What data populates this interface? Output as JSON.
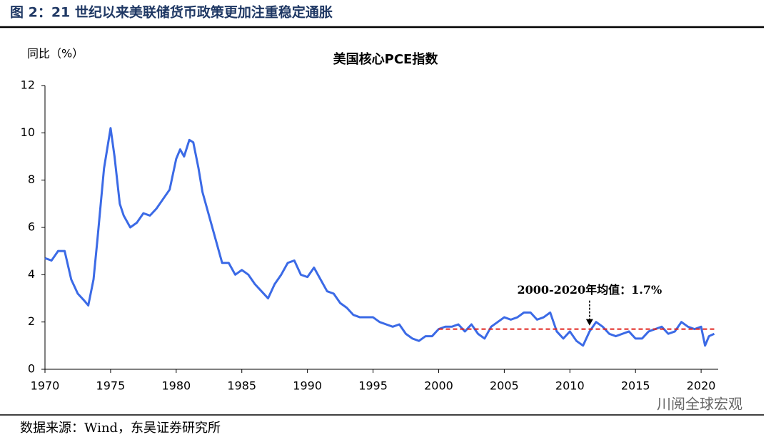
{
  "header": {
    "title": "图 2：21 世纪以来美联储货币政策更加注重稳定通胀"
  },
  "footer": {
    "source": "数据来源：Wind，东吴证券研究所",
    "watermark": "川阅全球宏观"
  },
  "chart_data": {
    "type": "line",
    "title": "美国核心PCE指数",
    "y_label": "同比（%）",
    "color": "#3b6ae6",
    "x": [
      1970,
      1970.5,
      1971,
      1971.5,
      1972,
      1972.5,
      1973,
      1973.3,
      1973.7,
      1974,
      1974.5,
      1975,
      1975.3,
      1975.7,
      1976,
      1976.5,
      1977,
      1977.5,
      1978,
      1978.5,
      1979,
      1979.5,
      1980,
      1980.3,
      1980.6,
      1981,
      1981.3,
      1981.7,
      1982,
      1982.5,
      1983,
      1983.5,
      1984,
      1984.5,
      1985,
      1985.5,
      1986,
      1986.5,
      1987,
      1987.5,
      1988,
      1988.5,
      1989,
      1989.5,
      1990,
      1990.5,
      1991,
      1991.5,
      1992,
      1992.5,
      1993,
      1993.5,
      1994,
      1994.5,
      1995,
      1995.5,
      1996,
      1996.5,
      1997,
      1997.5,
      1998,
      1998.5,
      1999,
      1999.5,
      2000,
      2000.5,
      2001,
      2001.5,
      2002,
      2002.5,
      2003,
      2003.5,
      2004,
      2004.5,
      2005,
      2005.5,
      2006,
      2006.5,
      2007,
      2007.5,
      2008,
      2008.5,
      2009,
      2009.5,
      2010,
      2010.5,
      2011,
      2011.5,
      2012,
      2012.5,
      2013,
      2013.5,
      2014,
      2014.5,
      2015,
      2015.5,
      2016,
      2016.5,
      2017,
      2017.5,
      2018,
      2018.5,
      2019,
      2019.5,
      2020,
      2020.3,
      2020.6,
      2021
    ],
    "values": [
      4.7,
      4.6,
      5.0,
      5.0,
      3.8,
      3.2,
      2.9,
      2.7,
      3.8,
      5.5,
      8.5,
      10.2,
      9.0,
      7.0,
      6.5,
      6.0,
      6.2,
      6.6,
      6.5,
      6.8,
      7.2,
      7.6,
      8.9,
      9.3,
      9.0,
      9.7,
      9.6,
      8.5,
      7.5,
      6.5,
      5.5,
      4.5,
      4.5,
      4.0,
      4.2,
      4.0,
      3.6,
      3.3,
      3.0,
      3.6,
      4.0,
      4.5,
      4.6,
      4.0,
      3.9,
      4.3,
      3.8,
      3.3,
      3.2,
      2.8,
      2.6,
      2.3,
      2.2,
      2.2,
      2.2,
      2.0,
      1.9,
      1.8,
      1.9,
      1.5,
      1.3,
      1.2,
      1.4,
      1.4,
      1.7,
      1.8,
      1.8,
      1.9,
      1.6,
      1.9,
      1.5,
      1.3,
      1.8,
      2.0,
      2.2,
      2.1,
      2.2,
      2.4,
      2.4,
      2.1,
      2.2,
      2.4,
      1.6,
      1.3,
      1.6,
      1.2,
      1.0,
      1.6,
      2.0,
      1.8,
      1.5,
      1.4,
      1.5,
      1.6,
      1.3,
      1.3,
      1.6,
      1.7,
      1.8,
      1.5,
      1.6,
      2.0,
      1.8,
      1.7,
      1.8,
      1.0,
      1.4,
      1.5
    ],
    "xlim": [
      1970,
      2021.3
    ],
    "xticks": [
      1970,
      1975,
      1980,
      1985,
      1990,
      1995,
      2000,
      2005,
      2010,
      2015,
      2020
    ],
    "ylim": [
      0,
      12
    ],
    "yticks": [
      0,
      2,
      4,
      6,
      8,
      10,
      12
    ],
    "mean": {
      "label": "2000-2020年均值：1.7%",
      "value": 1.7,
      "xrange": [
        2000,
        2021
      ],
      "color": "#e0201b"
    }
  }
}
